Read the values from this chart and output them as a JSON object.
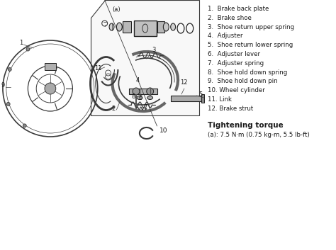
{
  "background_color": "#ffffff",
  "figsize": [
    4.74,
    3.53
  ],
  "dpi": 100,
  "legend_items": [
    "1.  Brake back plate",
    "2.  Brake shoe",
    "3.  Shoe return upper spring",
    "4.  Adjuster",
    "5.  Shoe return lower spring",
    "6.  Adjuster lever",
    "7.  Adjuster spring",
    "8.  Shoe hold down spring",
    "9.  Shoe hold down pin",
    "10. Wheel cylinder",
    "11. Link",
    "12. Brake strut"
  ],
  "torque_title": "Tightening torque",
  "torque_value": "(a): 7.5 N·m (0.75 kg-m, 5.5 lb-ft)",
  "text_color": "#1a1a1a",
  "legend_fontsize": 6.2,
  "torque_fontsize": 6.2,
  "torque_title_fontsize": 7.5,
  "line_color": "#3a3a3a",
  "part_color": "#888888",
  "part_edge": "#222222"
}
